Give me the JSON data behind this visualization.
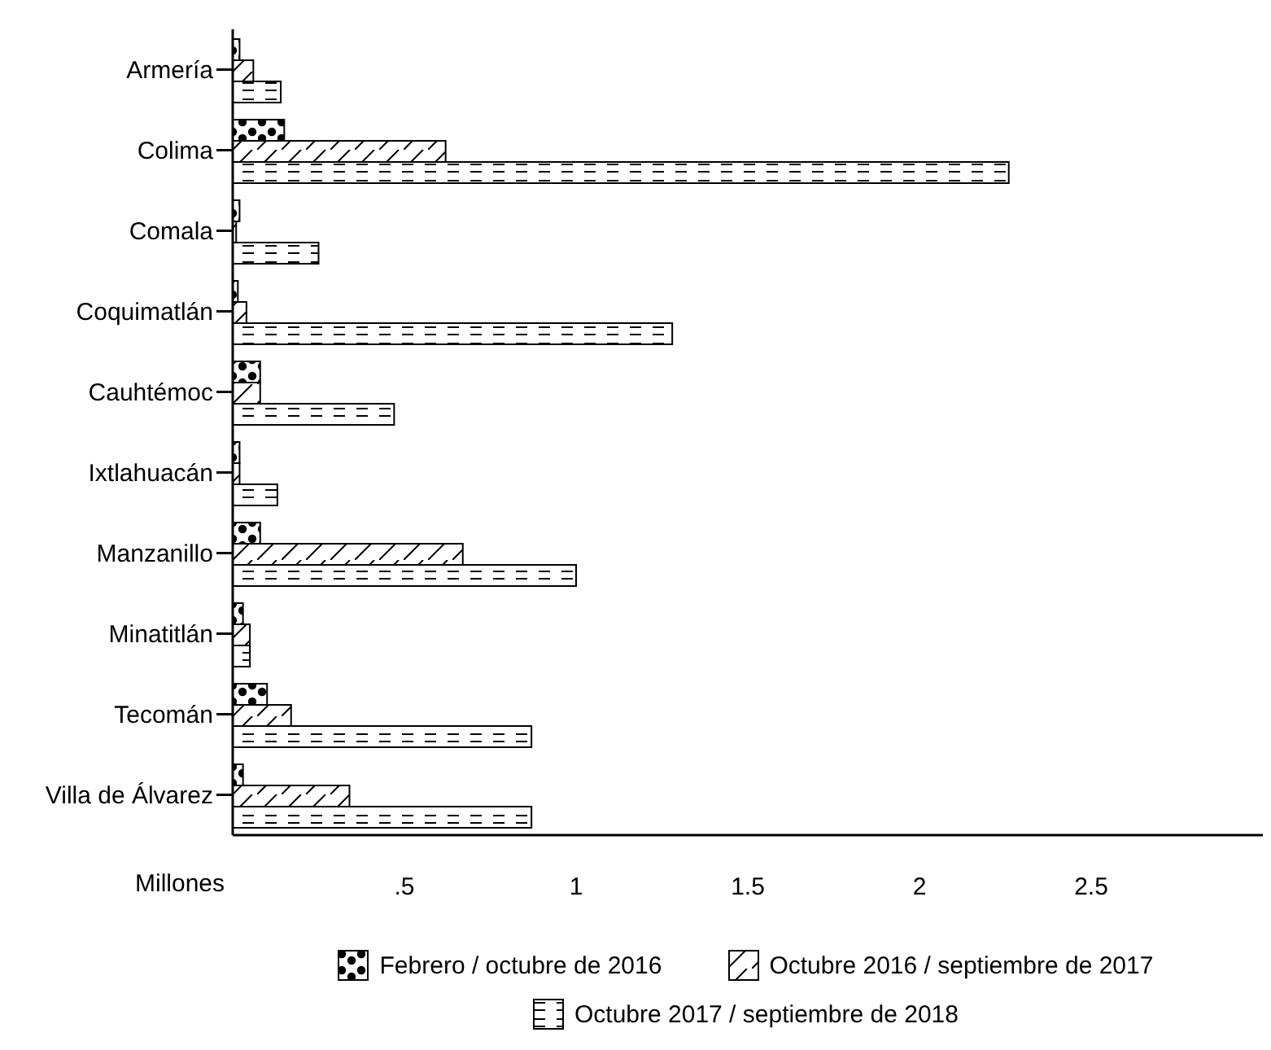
{
  "chart_data": {
    "type": "bar",
    "orientation": "horizontal",
    "xlabel": "Millones",
    "categories": [
      "Armería",
      "Colima",
      "Comala",
      "Coquimatlán",
      "Cauhtémoc",
      "Ixtlahuacán",
      "Manzanillo",
      "Minatitlán",
      "Tecomán",
      "Villa de Álvarez"
    ],
    "series": [
      {
        "name": "Febrero / octubre de 2016",
        "color": "#000000",
        "values": [
          0.02,
          0.15,
          0.02,
          0.015,
          0.08,
          0.02,
          0.08,
          0.03,
          0.1,
          0.03
        ]
      },
      {
        "name": "Octubre 2016 / septiembre de 2017",
        "color": "#000000",
        "values": [
          0.06,
          0.62,
          0.01,
          0.04,
          0.08,
          0.02,
          0.67,
          0.05,
          0.17,
          0.34
        ]
      },
      {
        "name": "Octubre 2017 / septiembre de 2018",
        "color": "#000000",
        "values": [
          0.14,
          2.26,
          0.25,
          1.28,
          0.47,
          0.13,
          1.0,
          0.05,
          0.87,
          0.87
        ]
      }
    ],
    "xlim": [
      0,
      3
    ],
    "xticks": [
      {
        "value": 0.5,
        "label": ".5"
      },
      1,
      1.5,
      2,
      2.5
    ],
    "grid": false,
    "legend": "bottom"
  }
}
